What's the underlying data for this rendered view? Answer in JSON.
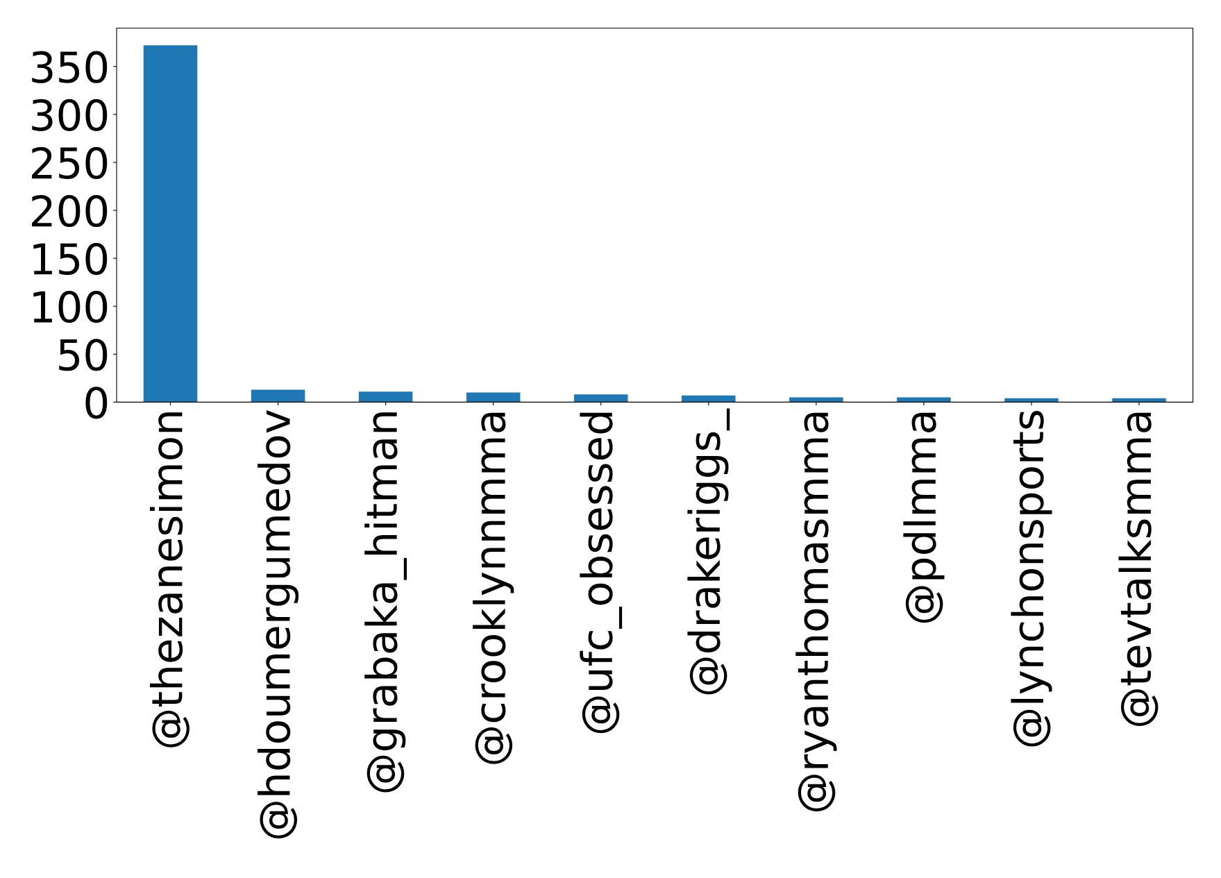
{
  "chart_data": {
    "type": "bar",
    "categories": [
      "@thezanesimon",
      "@hdoumergumedov",
      "@grabaka_hitman",
      "@crooklynnmma",
      "@ufc_obsessed",
      "@drakeriggs_",
      "@ryanthomasmma",
      "@pdlmma",
      "@lynchonsports",
      "@tevtalksmma"
    ],
    "values": [
      372,
      13,
      11,
      10,
      8,
      7,
      5,
      5,
      4,
      4
    ],
    "color": "#1f77b4",
    "ylim": [
      0,
      390
    ],
    "yticks": [
      0,
      50,
      100,
      150,
      200,
      250,
      300,
      350
    ],
    "grid": false,
    "legend": false
  }
}
